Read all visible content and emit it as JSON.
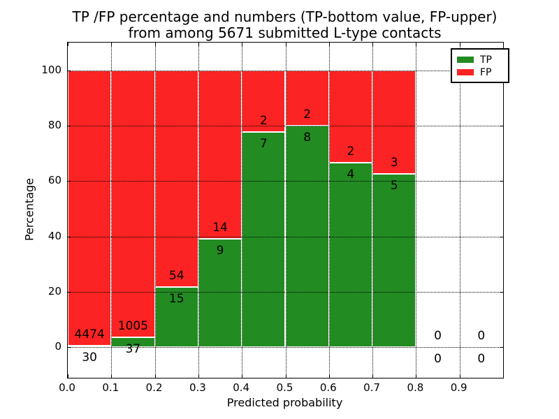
{
  "figure": {
    "title_line1": "TP /FP percentage and numbers (TP-bottom value, FP-upper)",
    "title_line2": "from among 5671 submitted L-type contacts",
    "xlabel": "Predicted probability",
    "ylabel": "Percentage"
  },
  "colors": {
    "tp_green": "#228b22",
    "fp_red": "#fb2323",
    "axis": "#000000",
    "background": "#ffffff"
  },
  "chart_data": {
    "type": "bar",
    "stacked": true,
    "title": "TP /FP percentage and numbers (TP-bottom value, FP-upper) from among 5671 submitted L-type contacts",
    "xlabel": "Predicted probability",
    "ylabel": "Percentage",
    "xlim": [
      0.0,
      1.0
    ],
    "ylim": [
      -11,
      110
    ],
    "grid": "dotted",
    "legend_position": "upper right",
    "bin_edges": [
      0.0,
      0.1,
      0.2,
      0.3,
      0.4,
      0.5,
      0.6,
      0.7,
      0.8,
      0.9,
      1.0
    ],
    "xtick_labels": [
      "0.0",
      "0.1",
      "0.2",
      "0.3",
      "0.4",
      "0.5",
      "0.6",
      "0.7",
      "0.8",
      "0.9"
    ],
    "ytick_values": [
      0,
      20,
      40,
      60,
      80,
      100
    ],
    "bar_total_height_percent": 100,
    "note": "each nonempty bin is a 100%-stacked bar; green TP share = tp/(tp+fp)*100, red FP share on top; labels show raw counts (TP below boundary, FP above)",
    "series": [
      {
        "name": "TP",
        "color": "#228b22",
        "counts": [
          30,
          37,
          15,
          9,
          7,
          8,
          4,
          5,
          0,
          0
        ]
      },
      {
        "name": "FP",
        "color": "#fb2323",
        "counts": [
          4474,
          1005,
          54,
          14,
          2,
          2,
          2,
          3,
          0,
          0
        ]
      }
    ],
    "tp_percent_by_bin": [
      0.67,
      3.55,
      21.74,
      39.13,
      77.78,
      80.0,
      66.67,
      62.5,
      0,
      0
    ]
  },
  "legend": {
    "entries": [
      {
        "label": "TP",
        "color": "#228b22"
      },
      {
        "label": "FP",
        "color": "#fb2323"
      }
    ]
  }
}
